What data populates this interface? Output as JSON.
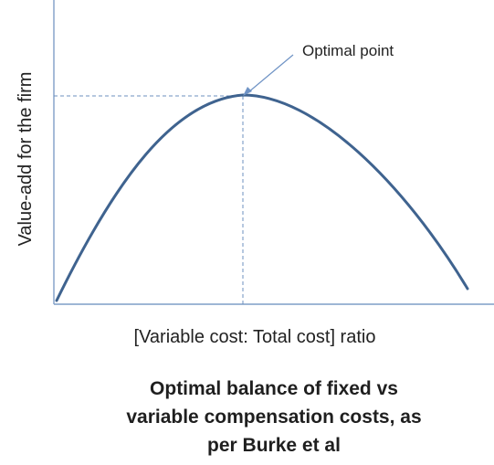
{
  "diagram": {
    "y_axis_label": "Value-add for the firm",
    "x_axis_label": "[Variable cost: Total cost] ratio",
    "annotation_label": "Optimal point",
    "caption_lines": [
      "Optimal balance of fixed vs",
      "variable compensation costs, as",
      "per Burke et al"
    ],
    "colors": {
      "axis": "#7f9ec7",
      "curve": "#3f638f",
      "guide": "#6d90bf",
      "arrow": "#6f93c5"
    }
  }
}
